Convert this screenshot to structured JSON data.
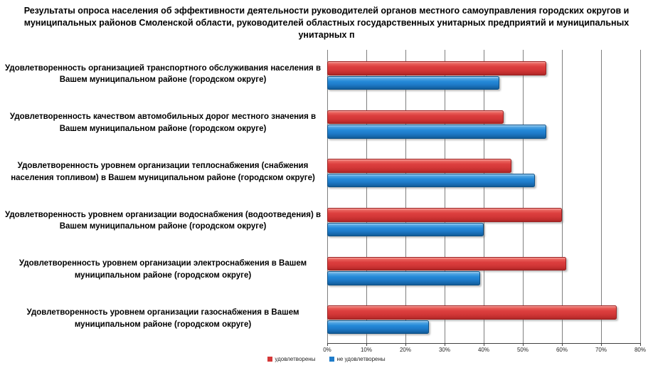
{
  "title": "Результаты опроса населения об эффективности деятельности руководителей органов местного самоуправления городских округов и муниципальных районов Смоленской области, руководителей областных государственных унитарных предприятий и муниципальных унитарных п",
  "chart_data": {
    "type": "bar",
    "orientation": "horizontal",
    "title": "Результаты опроса населения об эффективности деятельности руководителей органов местного самоуправления городских округов и муниципальных районов Смоленской области, руководителей областных государственных унитарных предприятий и муниципальных унитарных п",
    "categories": [
      "Удовлетворенность организацией транспортного обслуживания населения в Вашем муниципальном районе (городском округе)",
      "Удовлетворенность качеством автомобильных дорог местного значения в Вашем муниципальном районе (городском округе)",
      "Удовлетворенность уровнем организации теплоснабжения (снабжения населения топливом) в Вашем муниципальном районе (городском округе)",
      "Удовлетворенность уровнем организации водоснабжения (водоотведения) в Вашем муниципальном районе (городском округе)",
      "Удовлетворенность уровнем организации электроснабжения в Вашем муниципальном районе (городском округе)",
      "Удовлетворенность уровнем организации газоснабжения в Вашем муниципальном районе (городском округе)"
    ],
    "series": [
      {
        "name": "удовлетворены",
        "color": "#d43838",
        "values": [
          56,
          45,
          47,
          60,
          61,
          74
        ]
      },
      {
        "name": "не удовлетворены",
        "color": "#1f7cca",
        "values": [
          44,
          56,
          53,
          40,
          39,
          26
        ]
      }
    ],
    "x_axis": {
      "ticks": [
        "0%",
        "10%",
        "20%",
        "30%",
        "40%",
        "50%",
        "60%",
        "70%",
        "80%"
      ],
      "min": 0,
      "max": 80,
      "unit": "%"
    },
    "grid": true,
    "gridline_color": "#7f7f7f",
    "legend_position": "bottom"
  }
}
